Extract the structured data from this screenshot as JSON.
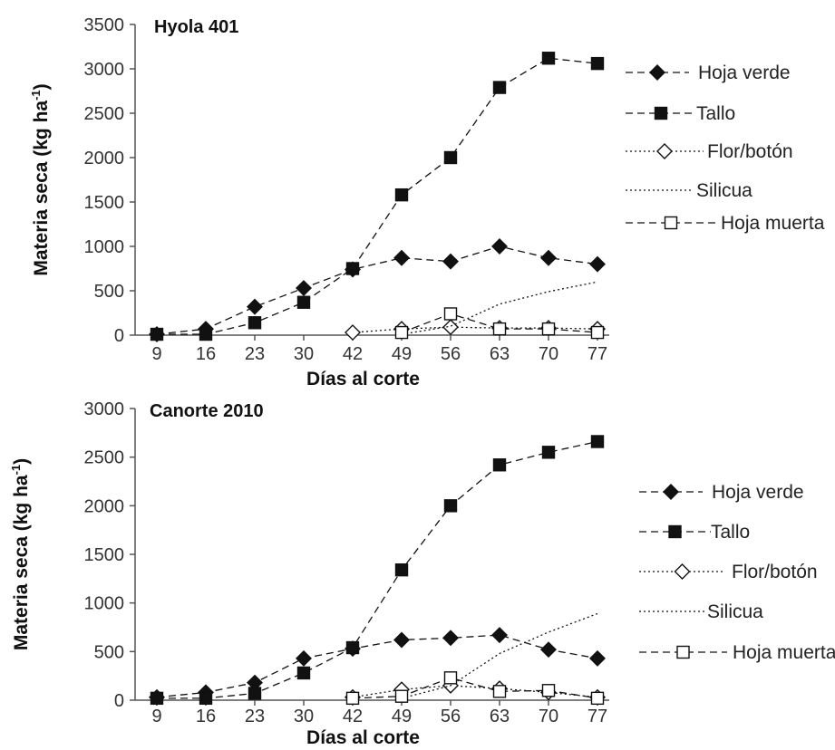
{
  "chart_data": [
    {
      "type": "line",
      "title": "Hyola 401",
      "xlabel": "Días al corte",
      "ylabel": "Materia seca (kg ha⁻¹)",
      "ylabel_main": "Materia seca (kg ha",
      "ylabel_sup": "-1",
      "ylabel_end": ")",
      "categories": [
        "9",
        "16",
        "23",
        "30",
        "42",
        "49",
        "56",
        "63",
        "70",
        "77"
      ],
      "ylim": [
        0,
        3500
      ],
      "yticks": [
        "0",
        "500",
        "1000",
        "1500",
        "2000",
        "2500",
        "3000",
        "3500"
      ],
      "grid": false,
      "legend_position": "right",
      "series": [
        {
          "name": "Hoja verde",
          "marker": "diamond-filled",
          "line": "dashed",
          "values": [
            10,
            70,
            320,
            530,
            740,
            870,
            830,
            1000,
            870,
            800
          ]
        },
        {
          "name": "Tallo",
          "marker": "square-filled",
          "line": "dashed",
          "values": [
            10,
            10,
            140,
            370,
            750,
            1580,
            2000,
            2790,
            3120,
            3060
          ]
        },
        {
          "name": "Flor/botón",
          "marker": "diamond-open",
          "line": "dotted",
          "values": [
            null,
            null,
            null,
            null,
            30,
            70,
            90,
            80,
            80,
            70
          ]
        },
        {
          "name": "Silicua",
          "marker": "none",
          "line": "dotted",
          "values": [
            null,
            null,
            null,
            null,
            null,
            10,
            100,
            350,
            490,
            600
          ]
        },
        {
          "name": "Hoja muerta",
          "marker": "square-open",
          "line": "dashed",
          "values": [
            null,
            null,
            null,
            null,
            null,
            30,
            240,
            70,
            70,
            30
          ]
        }
      ]
    },
    {
      "type": "line",
      "title": "Canorte 2010",
      "xlabel": "Días al corte",
      "ylabel": "Materia seca (kg ha⁻¹)",
      "ylabel_main": "Materia seca (kg ha",
      "ylabel_sup": "-1",
      "ylabel_end": ")",
      "categories": [
        "9",
        "16",
        "23",
        "30",
        "42",
        "49",
        "56",
        "63",
        "70",
        "77"
      ],
      "ylim": [
        0,
        3000
      ],
      "yticks": [
        "0",
        "500",
        "1000",
        "1500",
        "2000",
        "2500",
        "3000"
      ],
      "grid": false,
      "legend_position": "right",
      "series": [
        {
          "name": "Hoja verde",
          "marker": "diamond-filled",
          "line": "dashed",
          "values": [
            30,
            80,
            180,
            430,
            530,
            620,
            640,
            670,
            520,
            430
          ]
        },
        {
          "name": "Tallo",
          "marker": "square-filled",
          "line": "dashed",
          "values": [
            20,
            20,
            70,
            280,
            540,
            1340,
            2000,
            2420,
            2550,
            2660
          ]
        },
        {
          "name": "Flor/botón",
          "marker": "diamond-open",
          "line": "dotted",
          "values": [
            null,
            null,
            null,
            null,
            30,
            110,
            150,
            120,
            80,
            30
          ]
        },
        {
          "name": "Silicua",
          "marker": "none",
          "line": "dotted",
          "values": [
            null,
            null,
            null,
            null,
            null,
            20,
            150,
            480,
            700,
            890
          ]
        },
        {
          "name": "Hoja muerta",
          "marker": "square-open",
          "line": "dashed",
          "values": [
            null,
            null,
            null,
            null,
            20,
            40,
            230,
            90,
            100,
            20
          ]
        }
      ]
    }
  ],
  "colors": {
    "ink": "#111111",
    "axis": "#555555",
    "marker_fill_open": "#ffffff"
  }
}
